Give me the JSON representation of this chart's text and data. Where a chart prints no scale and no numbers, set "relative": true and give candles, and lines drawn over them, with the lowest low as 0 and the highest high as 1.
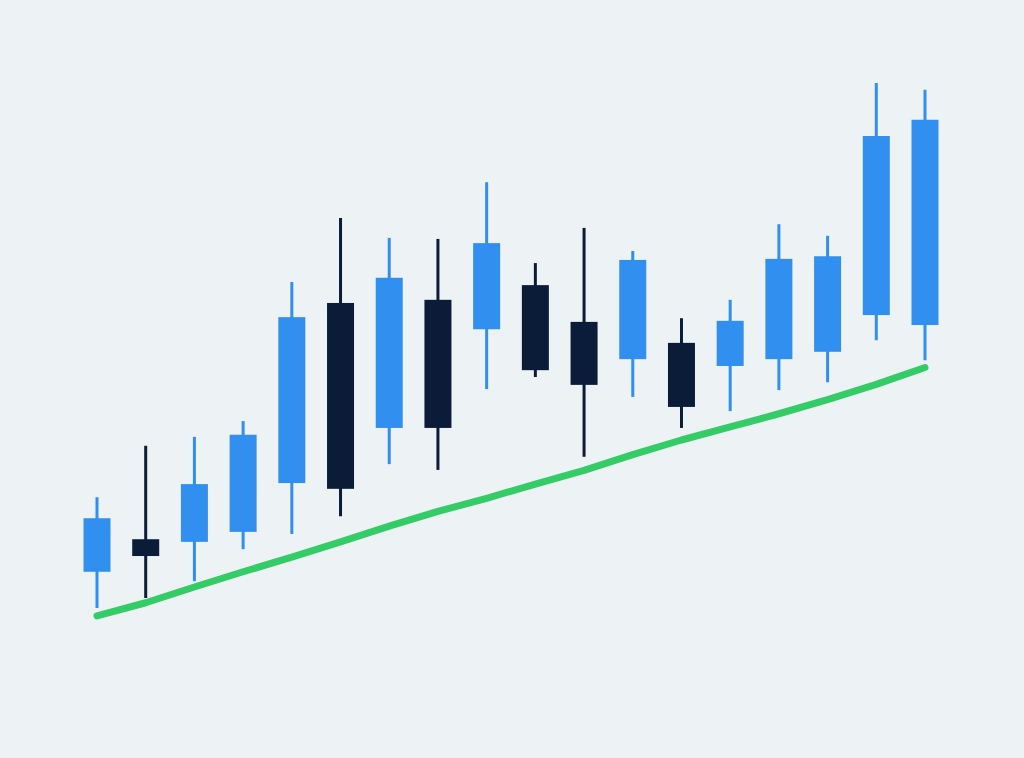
{
  "chart_data": {
    "type": "candlestick",
    "relative": true,
    "categories": [
      null,
      null,
      null,
      null,
      null,
      null,
      null,
      null,
      null,
      null,
      null,
      null,
      null,
      null,
      null,
      null,
      null,
      null
    ],
    "ohlc": [
      [
        0.069,
        0.211,
        0,
        0.171
      ],
      [
        0.131,
        0.309,
        0.019,
        0.099
      ],
      [
        0.126,
        0.326,
        0.051,
        0.236
      ],
      [
        0.145,
        0.356,
        0.112,
        0.33
      ],
      [
        0.238,
        0.621,
        0.141,
        0.554
      ],
      [
        0.581,
        0.743,
        0.175,
        0.227
      ],
      [
        0.343,
        0.705,
        0.274,
        0.629
      ],
      [
        0.587,
        0.703,
        0.263,
        0.343
      ],
      [
        0.531,
        0.811,
        0.417,
        0.695
      ],
      [
        0.615,
        0.657,
        0.44,
        0.453
      ],
      [
        0.545,
        0.724,
        0.288,
        0.425
      ],
      [
        0.474,
        0.68,
        0.402,
        0.663
      ],
      [
        0.505,
        0.552,
        0.343,
        0.383
      ],
      [
        0.461,
        0.587,
        0.375,
        0.547
      ],
      [
        0.474,
        0.731,
        0.415,
        0.665
      ],
      [
        0.488,
        0.709,
        0.43,
        0.67
      ],
      [
        0.558,
        1,
        0.51,
        0.899
      ],
      [
        0.539,
        0.987,
        0.472,
        0.93
      ]
    ],
    "colors": [
      "#318ff0",
      "#0a1c38",
      "#318ff0",
      "#318ff0",
      "#318ff0",
      "#0a1c38",
      "#318ff0",
      "#0a1c38",
      "#318ff0",
      "#0a1c38",
      "#0a1c38",
      "#318ff0",
      "#0a1c38",
      "#318ff0",
      "#318ff0",
      "#318ff0",
      "#318ff0",
      "#318ff0"
    ],
    "series": [
      {
        "type": "line",
        "color": "#33cc66",
        "values": [
          -0.015,
          0.01,
          0.04,
          0.069,
          0.097,
          0.126,
          0.156,
          0.184,
          0.209,
          0.236,
          0.262,
          0.292,
          0.32,
          0.345,
          0.37,
          0.397,
          0.426,
          0.458
        ]
      }
    ]
  }
}
